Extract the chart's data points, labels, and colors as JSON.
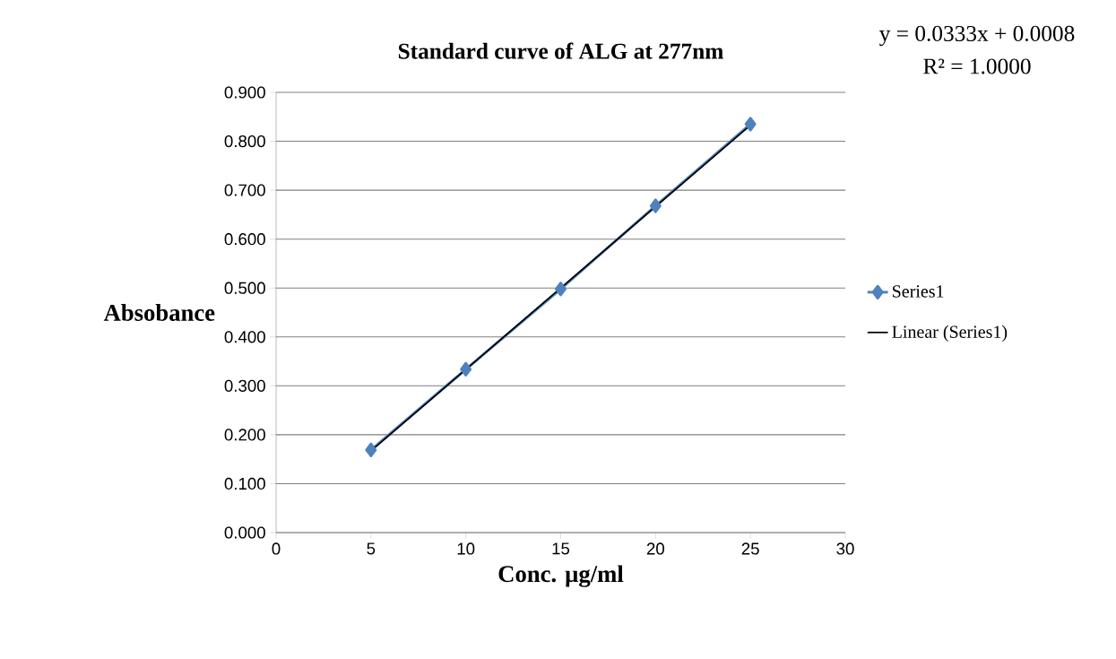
{
  "chart_data": {
    "type": "line",
    "title": "Standard curve of ALG at 277nm",
    "xlabel": "Conc. µg/ml",
    "ylabel": "Absobance",
    "annotations": [
      "y = 0.0333x + 0.0008",
      "R² = 1.0000"
    ],
    "series": [
      {
        "name": "Series1",
        "color": "#4f81bd",
        "marker": "diamond",
        "x": [
          5,
          10,
          15,
          20,
          25
        ],
        "values": [
          0.169,
          0.334,
          0.498,
          0.668,
          0.835
        ]
      },
      {
        "name": "Linear (Series1)",
        "color": "#000000",
        "marker": "none",
        "x": [
          5,
          25
        ],
        "values": [
          0.167,
          0.833
        ]
      }
    ],
    "xlim": [
      0,
      30
    ],
    "xticks": [
      0,
      5,
      10,
      15,
      20,
      25,
      30
    ],
    "ylim": [
      0,
      0.9
    ],
    "yticks": [
      {
        "value": 0,
        "label": "0.000"
      },
      {
        "value": 0.1,
        "label": "0.100"
      },
      {
        "value": 0.2,
        "label": "0.200"
      },
      {
        "value": 0.3,
        "label": "0.300"
      },
      {
        "value": 0.4,
        "label": "0.400"
      },
      {
        "value": 0.5,
        "label": "0.500"
      },
      {
        "value": 0.6,
        "label": "0.600"
      },
      {
        "value": 0.7,
        "label": "0.700"
      },
      {
        "value": 0.8,
        "label": "0.800"
      },
      {
        "value": 0.9,
        "label": "0.900"
      }
    ],
    "grid": "y",
    "legend": "right"
  }
}
